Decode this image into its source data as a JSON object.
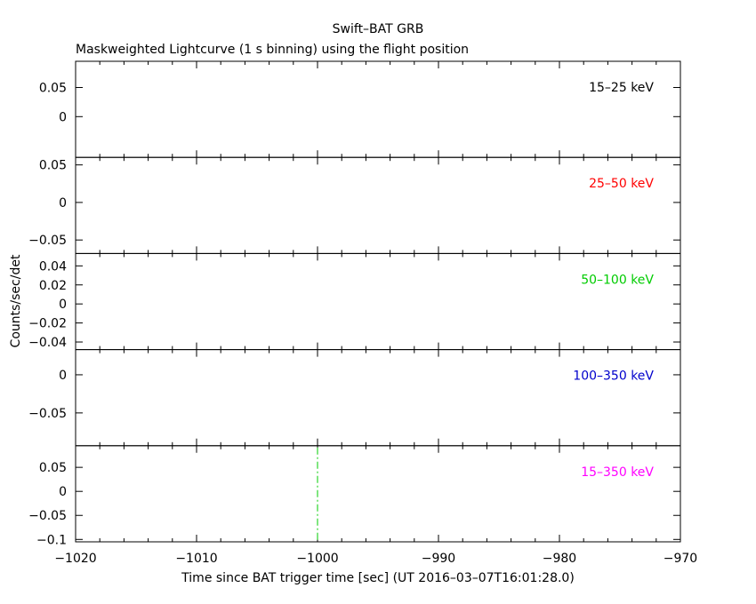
{
  "chart_data": {
    "type": "line",
    "title": "Swift–BAT GRB",
    "subtitle": "Maskweighted Lightcurve (1 s binning) using the flight position",
    "xlabel": "Time since BAT trigger time [sec] (UT 2016–03–07T16:01:28.0)",
    "ylabel": "Counts/sec/det",
    "xlim": [
      -1020,
      -970
    ],
    "x_ticks": [
      -1020,
      -1010,
      -1000,
      -990,
      -980,
      -970
    ],
    "x_tick_labels": [
      "−1020",
      "−1010",
      "−1000",
      "−990",
      "−980",
      "−970"
    ],
    "grid": false,
    "panels": [
      {
        "band": "15–25 keV",
        "color": "#000000",
        "ylim": [
          -0.07,
          0.095
        ],
        "y_ticks": [
          0,
          0.05
        ],
        "y_tick_labels": [
          "0",
          "0.05"
        ]
      },
      {
        "band": "25–50 keV",
        "color": "#ff0000",
        "ylim": [
          -0.068,
          0.06
        ],
        "y_ticks": [
          -0.05,
          0,
          0.05
        ],
        "y_tick_labels": [
          "−0.05",
          "0",
          "0.05"
        ]
      },
      {
        "band": "50–100 keV",
        "color": "#00cc00",
        "ylim": [
          -0.048,
          0.053
        ],
        "y_ticks": [
          -0.04,
          -0.02,
          0,
          0.02,
          0.04
        ],
        "y_tick_labels": [
          "−0.04",
          "−0.02",
          "0",
          "0.02",
          "0.04"
        ]
      },
      {
        "band": "100–350 keV",
        "color": "#0000cc",
        "ylim": [
          -0.093,
          0.033
        ],
        "y_ticks": [
          -0.05,
          0
        ],
        "y_tick_labels": [
          "−0.05",
          "0"
        ]
      },
      {
        "band": "15–350 keV",
        "color": "#ff00ff",
        "ylim": [
          -0.105,
          0.095
        ],
        "y_ticks": [
          -0.1,
          -0.05,
          0,
          0.05
        ],
        "y_tick_labels": [
          "−0.1",
          "−0.05",
          "0",
          "0.05"
        ]
      }
    ],
    "annotations": [
      {
        "type": "vertical-dash-dot-line",
        "x": -1000,
        "panel": 4,
        "color": "#00cc00"
      }
    ]
  }
}
